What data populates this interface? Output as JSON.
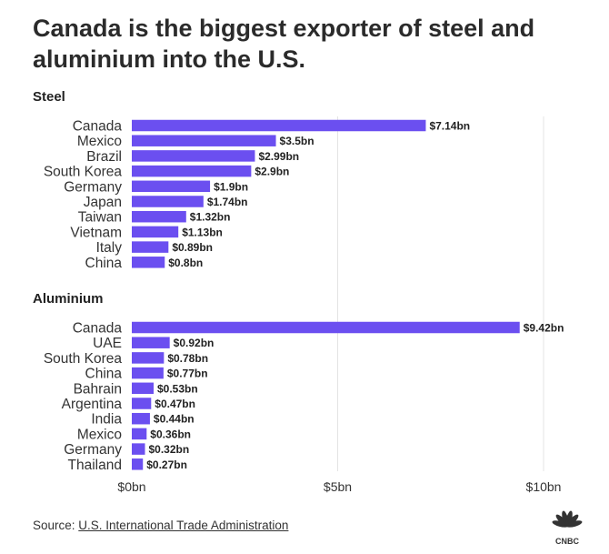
{
  "title": "Canada is the biggest exporter of steel and aluminium into the U.S.",
  "footer": {
    "source_prefix": "Source:",
    "source_link": "U.S. International Trade Administration"
  },
  "logo": {
    "text": "CNBC"
  },
  "colors": {
    "bar": "#6b4ff0",
    "grid": "#e4e4e4",
    "text": "#222222"
  },
  "chart_data": [
    {
      "type": "bar",
      "orientation": "horizontal",
      "title": "Steel",
      "categories": [
        "Canada",
        "Mexico",
        "Brazil",
        "South Korea",
        "Germany",
        "Japan",
        "Taiwan",
        "Vietnam",
        "Italy",
        "China"
      ],
      "values": [
        7.14,
        3.5,
        2.99,
        2.9,
        1.9,
        1.74,
        1.32,
        1.13,
        0.89,
        0.8
      ],
      "labels": [
        "$7.14bn",
        "$3.5bn",
        "$2.99bn",
        "$2.9bn",
        "$1.9bn",
        "$1.74bn",
        "$1.32bn",
        "$1.13bn",
        "$0.89bn",
        "$0.8bn"
      ],
      "xlim": [
        0,
        10
      ]
    },
    {
      "type": "bar",
      "orientation": "horizontal",
      "title": "Aluminium",
      "categories": [
        "Canada",
        "UAE",
        "South Korea",
        "China",
        "Bahrain",
        "Argentina",
        "India",
        "Mexico",
        "Germany",
        "Thailand"
      ],
      "values": [
        9.42,
        0.92,
        0.78,
        0.77,
        0.53,
        0.47,
        0.44,
        0.36,
        0.32,
        0.27
      ],
      "labels": [
        "$9.42bn",
        "$0.92bn",
        "$0.78bn",
        "$0.77bn",
        "$0.53bn",
        "$0.47bn",
        "$0.44bn",
        "$0.36bn",
        "$0.32bn",
        "$0.27bn"
      ],
      "xlim": [
        0,
        10
      ],
      "xticks": [
        0,
        5,
        10
      ],
      "xtick_labels": [
        "$0bn",
        "$5bn",
        "$10bn"
      ]
    }
  ]
}
